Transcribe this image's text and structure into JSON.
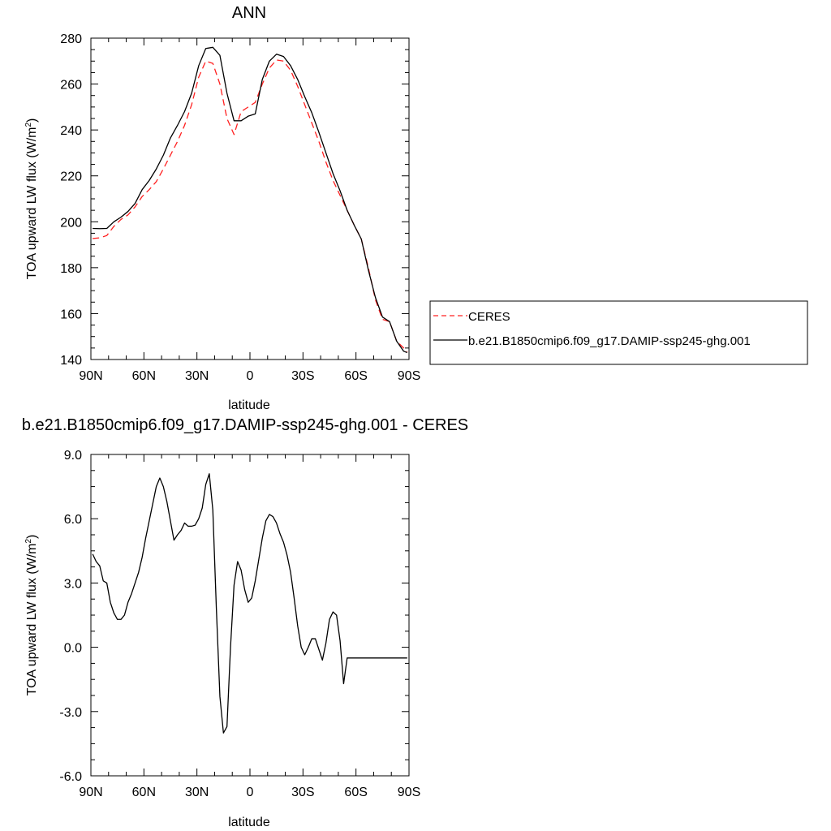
{
  "chart_data": [
    {
      "type": "line",
      "title": "ANN",
      "xlabel": "latitude",
      "ylabel": "TOA upward LW flux (W/m",
      "ylabel_sup": "2",
      "ylabel_suffix": ")",
      "xlim": [
        90,
        -90
      ],
      "ylim": [
        140,
        280
      ],
      "x_ticks": [
        90,
        60,
        30,
        0,
        -30,
        -60,
        -90
      ],
      "x_tick_labels": [
        "90N",
        "60N",
        "30N",
        "0",
        "30S",
        "60S",
        "90S"
      ],
      "y_ticks": [
        140,
        160,
        180,
        200,
        220,
        240,
        260,
        280
      ],
      "y_tick_labels": [
        "140",
        "160",
        "180",
        "200",
        "220",
        "240",
        "260",
        "280"
      ],
      "legend_position": "right, outside plot",
      "x": [
        89,
        85,
        81,
        77,
        73,
        69,
        65,
        61,
        57,
        53,
        49,
        45,
        41,
        37,
        33,
        29,
        25,
        21,
        17,
        13,
        9,
        5,
        1,
        -3,
        -7,
        -11,
        -15,
        -19,
        -23,
        -27,
        -31,
        -35,
        -39,
        -43,
        -47,
        -51,
        -55,
        -59,
        -63,
        -67,
        -71,
        -75,
        -79,
        -83,
        -87,
        -89
      ],
      "series": [
        {
          "name": "CERES",
          "color": "#ff2020",
          "dash": "dashed",
          "values": [
            192.7,
            193.0,
            194.0,
            198.0,
            201.0,
            203.0,
            206.5,
            211.0,
            214.0,
            217.5,
            223.0,
            229.0,
            235.0,
            242.0,
            251.0,
            263.0,
            270.0,
            269.0,
            260.0,
            245.0,
            238.0,
            248.0,
            250.0,
            252.0,
            260.0,
            267.0,
            270.5,
            270.0,
            266.0,
            259.0,
            251.0,
            243.0,
            235.0,
            226.0,
            218.0,
            211.5,
            205.0,
            198.5,
            192.5,
            180.0,
            166.0,
            157.5,
            156.5,
            148.0,
            145.0,
            143.3
          ]
        },
        {
          "name": "b.e21.B1850cmip6.f09_g17.DAMIP-ssp245-ghg.001",
          "color": "#000000",
          "dash": "solid",
          "values": [
            197.1,
            197.0,
            197.1,
            200.0,
            202.0,
            204.5,
            208.0,
            214.0,
            218.0,
            223.0,
            229.0,
            236.5,
            242.0,
            248.0,
            256.0,
            268.0,
            275.5,
            276.0,
            272.5,
            256.0,
            244.0,
            244.0,
            246.0,
            247.0,
            262.0,
            270.0,
            273.0,
            272.0,
            268.0,
            262.0,
            254.5,
            247.5,
            239.0,
            230.0,
            221.0,
            213.5,
            205.0,
            198.5,
            192.5,
            179.0,
            167.0,
            158.5,
            156.5,
            148.0,
            143.6,
            143.0
          ]
        }
      ]
    },
    {
      "type": "line",
      "title": "b.e21.B1850cmip6.f09_g17.DAMIP-ssp245-ghg.001 - CERES",
      "xlabel": "latitude",
      "ylabel": "TOA upward LW flux (W/m",
      "ylabel_sup": "2",
      "ylabel_suffix": ")",
      "xlim": [
        90,
        -90
      ],
      "ylim": [
        -6,
        9
      ],
      "x_ticks": [
        90,
        60,
        30,
        0,
        -30,
        -60,
        -90
      ],
      "x_tick_labels": [
        "90N",
        "60N",
        "30N",
        "0",
        "30S",
        "60S",
        "90S"
      ],
      "y_ticks": [
        -6,
        -3,
        0,
        3,
        6,
        9
      ],
      "y_tick_labels": [
        "-6.0",
        "-3.0",
        "0.0",
        "3.0",
        "6.0",
        "9.0"
      ],
      "x": [
        89,
        87,
        85,
        83,
        81,
        79,
        77,
        75,
        73,
        71,
        69,
        67,
        65,
        63,
        61,
        59,
        57,
        55,
        53,
        51,
        49,
        47,
        45,
        43,
        41,
        39,
        37,
        35,
        33,
        31,
        29,
        27,
        25,
        23,
        21,
        19,
        17,
        15,
        13,
        11,
        9,
        7,
        5,
        3,
        1,
        -1,
        -3,
        -5,
        -7,
        -9,
        -11,
        -13,
        -15,
        -17,
        -19,
        -21,
        -23,
        -25,
        -27,
        -29,
        -31,
        -33,
        -35,
        -37,
        -39,
        -41,
        -43,
        -45,
        -47,
        -49,
        -51,
        -53,
        -55,
        -57,
        -59,
        -61,
        -63,
        -65,
        -67,
        -69,
        -71,
        -73,
        -75,
        -77,
        -79,
        -81,
        -83,
        -85,
        -87,
        -89
      ],
      "series": [
        {
          "name": "",
          "color": "#000000",
          "dash": "solid",
          "values": [
            4.35,
            4.0,
            3.8,
            3.1,
            3.0,
            2.1,
            1.6,
            1.3,
            1.3,
            1.5,
            2.1,
            2.5,
            3.0,
            3.5,
            4.2,
            5.1,
            5.9,
            6.7,
            7.5,
            7.9,
            7.5,
            6.8,
            5.9,
            5.0,
            5.25,
            5.45,
            5.8,
            5.65,
            5.65,
            5.7,
            6.0,
            6.5,
            7.6,
            8.1,
            6.4,
            1.8,
            -2.3,
            -4.0,
            -3.7,
            0.0,
            2.9,
            4.0,
            3.6,
            2.7,
            2.1,
            2.3,
            3.1,
            4.1,
            5.1,
            5.9,
            6.2,
            6.1,
            5.8,
            5.3,
            4.9,
            4.3,
            3.5,
            2.3,
            1.0,
            0.0,
            -0.35,
            0.0,
            0.4,
            0.4,
            -0.1,
            -0.6,
            0.2,
            1.3,
            1.65,
            1.5,
            0.3,
            -1.7,
            -0.5,
            -0.5,
            -0.5,
            -0.5,
            -0.5,
            -0.5,
            -0.5,
            -0.5,
            -0.5,
            -0.5,
            -0.5,
            -0.5,
            -0.5,
            -0.5,
            -0.5,
            -0.5,
            -0.5,
            -0.5
          ]
        }
      ]
    }
  ]
}
